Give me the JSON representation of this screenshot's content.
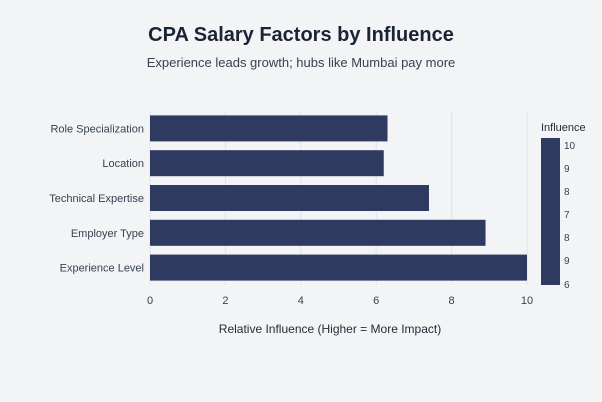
{
  "chart_data": {
    "type": "bar",
    "orientation": "horizontal",
    "title": "CPA Salary Factors by Influence",
    "subtitle": "Experience leads growth; hubs like Mumbai pay more",
    "xlabel": "Relative Influence (Higher = More Impact)",
    "ylabel": "",
    "xlim": [
      0,
      10
    ],
    "x_ticks": [
      "0",
      "2",
      "4",
      "6",
      "8",
      "10"
    ],
    "categories": [
      "Role Specialization",
      "Location",
      "Technical Expertise",
      "Employer Type",
      "Experience Level"
    ],
    "values": [
      6.3,
      6.2,
      7.4,
      8.9,
      10
    ],
    "bar_color": "#2e3a60",
    "grid": true,
    "legend": {
      "title": "Influence",
      "placement": "right",
      "ticks": [
        "10",
        "9",
        "8",
        "7",
        "8",
        "9",
        "6"
      ]
    }
  }
}
